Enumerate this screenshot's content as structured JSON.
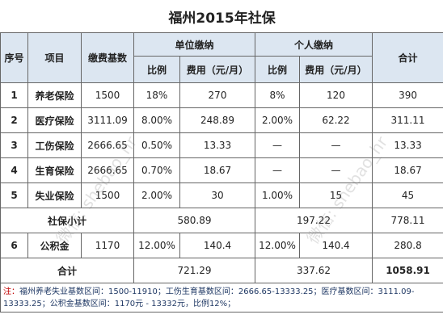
{
  "title": "福州2015年社保",
  "header": {
    "no": "序号",
    "item": "项目",
    "base": "缴费基数",
    "unit": "单位缴纳",
    "personal": "个人缴纳",
    "total": "合计"
  },
  "sub_header": [
    "比例",
    "费用（元/月）",
    "比例",
    "费用（元/月）"
  ],
  "rows": [
    [
      "1",
      "养老保险",
      "1500",
      "18%",
      "270",
      "8%",
      "120",
      "390"
    ],
    [
      "2",
      "医疗保险",
      "3111.09",
      "8.00%",
      "248.89",
      "2.00%",
      "62.22",
      "311.11"
    ],
    [
      "3",
      "工伤保险",
      "2666.65",
      "0.50%",
      "13.33",
      "—",
      "—",
      "13.33"
    ],
    [
      "4",
      "生育保险",
      "2666.65",
      "0.70%",
      "18.67",
      "—",
      "—",
      "18.67"
    ],
    [
      "5",
      "失业保险",
      "1500",
      "2.00%",
      "30",
      "1.00%",
      "15",
      "45"
    ]
  ],
  "subtotal": {
    "label": "社保小计",
    "unit": "580.89",
    "personal": "197.22",
    "total": "778.11"
  },
  "fund_row": [
    "6",
    "公积金",
    "1170",
    "12.00%",
    "140.4",
    "12.00%",
    "140.4",
    "280.8"
  ],
  "grand_total": {
    "label": "合计",
    "unit": "721.29",
    "personal": "337.62",
    "total": "1058.91"
  },
  "note": {
    "mark": "注：",
    "text": "福州养老失业基数区间：1500-11910；工伤生育基数区间：2666.65-13333.25；医疗基数区间：3111.09-13333.25；公积金基数区间：1170元 - 13332元，比例12%；"
  },
  "watermark": "微信: shebao_hr"
}
